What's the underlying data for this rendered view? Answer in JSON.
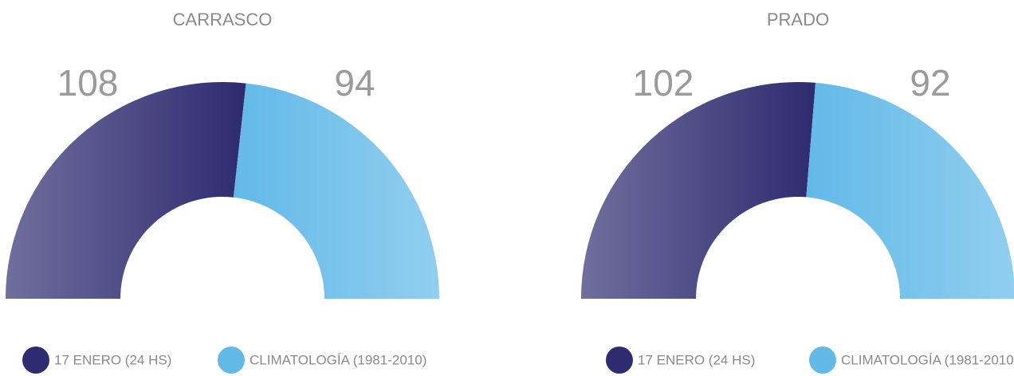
{
  "chart_data": [
    {
      "type": "donut",
      "title": "CARRASCO",
      "series": [
        {
          "name": "17 ENERO (24 HS)",
          "color": "#2e2b70",
          "values": [
            108
          ]
        },
        {
          "name": "CLIMATOLOGÍA (1981-2010)",
          "color": "#62b9e8",
          "values": [
            94
          ]
        }
      ]
    },
    {
      "type": "donut",
      "title": "PRADO",
      "series": [
        {
          "name": "17 ENERO (24 HS)",
          "color": "#2e2b70",
          "values": [
            102
          ]
        },
        {
          "name": "CLIMATOLOGÍA (1981-2010)",
          "color": "#62b9e8",
          "values": [
            92
          ]
        }
      ]
    }
  ]
}
